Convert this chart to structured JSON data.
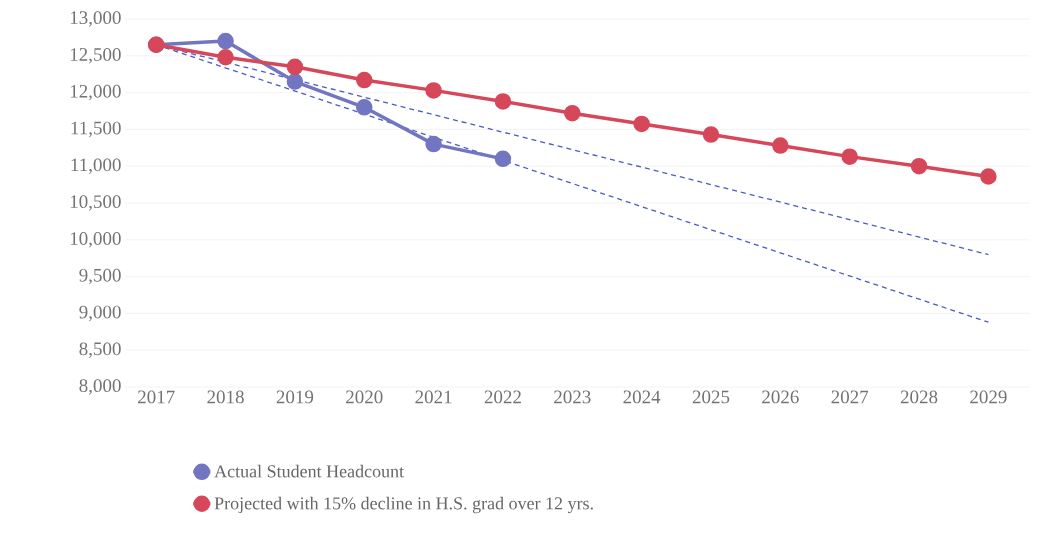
{
  "chart_data": {
    "type": "line",
    "xlim": [
      2016.55,
      2029.6
    ],
    "ylim": [
      8000,
      13000
    ],
    "xticks": [
      2017,
      2018,
      2019,
      2020,
      2021,
      2022,
      2023,
      2024,
      2025,
      2026,
      2027,
      2028,
      2029
    ],
    "yticks": [
      {
        "value": 8000,
        "label": "8,000"
      },
      {
        "value": 8500,
        "label": "8,500"
      },
      {
        "value": 9000,
        "label": "9,000"
      },
      {
        "value": 9500,
        "label": "9,500"
      },
      {
        "value": 10000,
        "label": "10,000"
      },
      {
        "value": 10500,
        "label": "10,500"
      },
      {
        "value": 11000,
        "label": "11,000"
      },
      {
        "value": 11500,
        "label": "11,500"
      },
      {
        "value": 12000,
        "label": "12,000"
      },
      {
        "value": 12500,
        "label": "12,500"
      },
      {
        "value": 13000,
        "label": "13,000"
      }
    ],
    "grid": "y",
    "legend": "bottom",
    "marker": "circle",
    "series": [
      {
        "name": "Actual Student Headcount",
        "color": "#7276c0",
        "x": [
          2017,
          2018,
          2019,
          2020,
          2021,
          2022
        ],
        "values": [
          12650,
          12700,
          12150,
          11800,
          11300,
          11100
        ]
      },
      {
        "name": "Projected with 15% decline in H.S. grad over 12 yrs.",
        "color": "#d6475a",
        "x": [
          2017,
          2018,
          2019,
          2020,
          2021,
          2022,
          2023,
          2024,
          2025,
          2026,
          2027,
          2028,
          2029
        ],
        "values": [
          12650,
          12480,
          12350,
          12170,
          12030,
          11880,
          11720,
          11575,
          11430,
          11280,
          11130,
          11000,
          10860
        ]
      },
      {
        "color": "#4a5cc0",
        "x": [
          2017,
          2029
        ],
        "values": [
          12650,
          9800
        ],
        "line_style": "dashed",
        "marker": "none"
      },
      {
        "color": "#4a5cc0",
        "x": [
          2017,
          2029
        ],
        "values": [
          12650,
          8880
        ],
        "line_style": "dashed",
        "marker": "none"
      }
    ]
  }
}
